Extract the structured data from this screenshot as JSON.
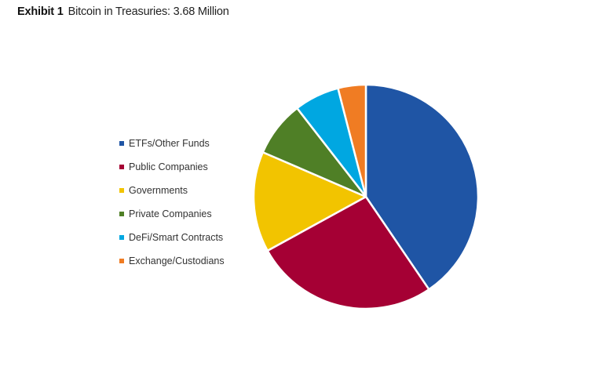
{
  "header": {
    "exhibit_label": "Exhibit 1",
    "title": "Bitcoin in Treasuries: 3.68 Million"
  },
  "chart_data": {
    "type": "pie",
    "title": "Bitcoin in Treasuries: 3.68 Million",
    "legend_position": "left",
    "start_angle_deg": 0,
    "direction": "clockwise",
    "slices": [
      {
        "label": "ETFs/Other Funds",
        "value": 40.5,
        "color": "#1f55a5"
      },
      {
        "label": "Public Companies",
        "value": 26.5,
        "color": "#a50034"
      },
      {
        "label": "Governments",
        "value": 14.5,
        "color": "#f2c400"
      },
      {
        "label": "Private Companies",
        "value": 8.0,
        "color": "#4f7f26"
      },
      {
        "label": "DeFi/Smart Contracts",
        "value": 6.5,
        "color": "#00a7e1"
      },
      {
        "label": "Exchange/Custodians",
        "value": 4.0,
        "color": "#f07c23"
      }
    ]
  }
}
